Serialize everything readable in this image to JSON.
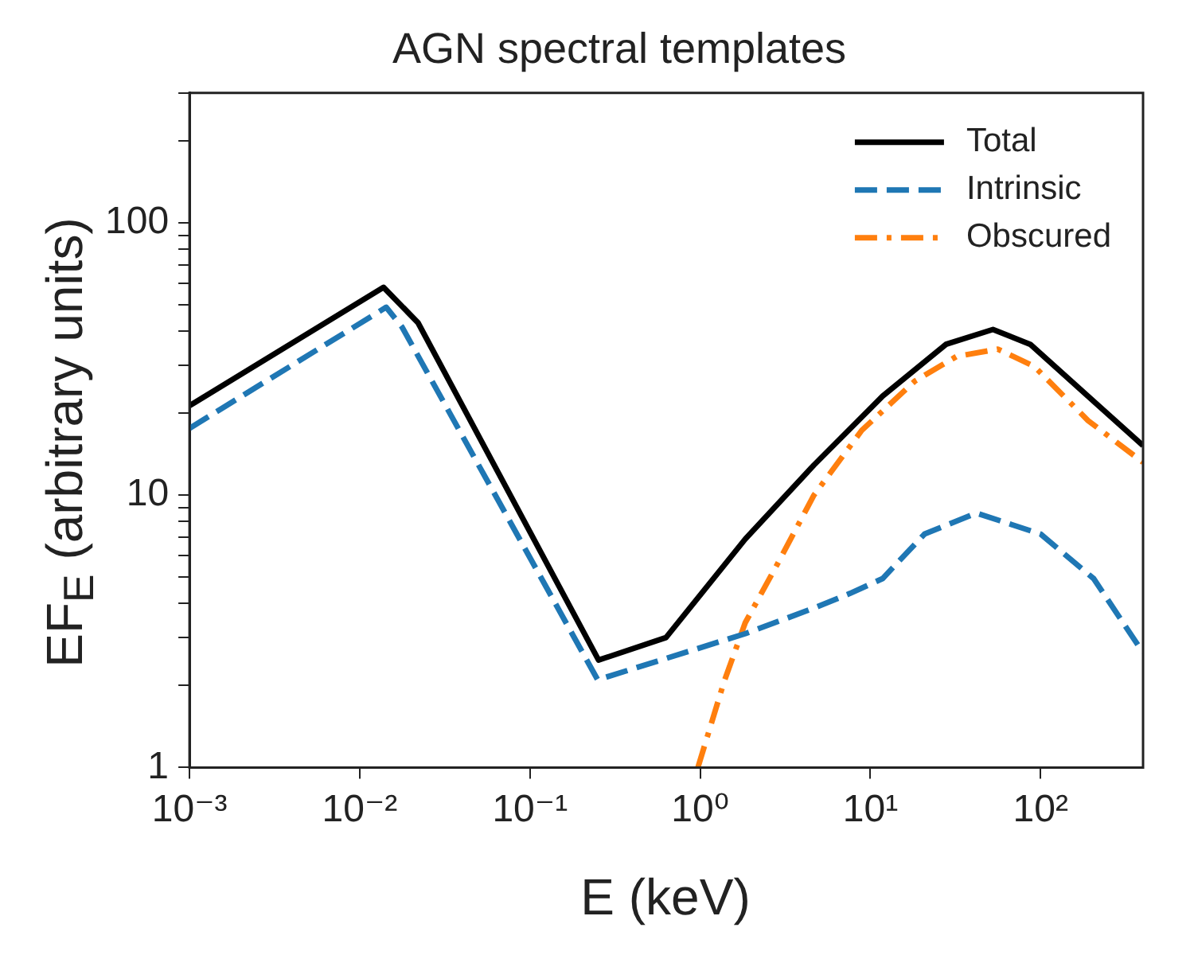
{
  "chart_data": {
    "type": "line",
    "title": "AGN spectral templates",
    "xlabel": "E (keV)",
    "ylabel": "EF$_{E}$ (arbitrary units)",
    "log": "xy",
    "legend": "top right",
    "grid": false,
    "marker": "none",
    "xlim": [
      0.001,
      400
    ],
    "ylim": [
      1,
      300
    ],
    "xticks": [
      {
        "value": 0.001,
        "label": "10⁻³"
      },
      {
        "value": 0.01,
        "label": "10⁻²"
      },
      {
        "value": 0.1,
        "label": "10⁻¹"
      },
      {
        "value": 1,
        "label": "10⁰"
      },
      {
        "value": 10,
        "label": "10¹"
      },
      {
        "value": 100,
        "label": "10²"
      }
    ],
    "yticks": [
      1,
      {
        "value": 2,
        "label": null
      },
      {
        "value": 3,
        "label": null
      },
      {
        "value": 4,
        "label": null
      },
      {
        "value": 5,
        "label": null
      },
      {
        "value": 6,
        "label": null
      },
      {
        "value": 7,
        "label": null
      },
      {
        "value": 8,
        "label": null
      },
      {
        "value": 9,
        "label": null
      },
      10,
      {
        "value": 20,
        "label": null
      },
      {
        "value": 30,
        "label": null
      },
      {
        "value": 40,
        "label": null
      },
      {
        "value": 50,
        "label": null
      },
      {
        "value": 60,
        "label": null
      },
      {
        "value": 70,
        "label": null
      },
      {
        "value": 80,
        "label": null
      },
      {
        "value": 90,
        "label": null
      },
      100,
      {
        "value": 200,
        "label": null
      },
      {
        "value": 300,
        "label": null
      }
    ],
    "series": [
      {
        "name": "Total",
        "color": "#000000",
        "line_style": "solid",
        "x": [
          0.001,
          0.0138,
          0.022,
          0.253,
          0.63,
          1.84,
          4.66,
          11.8,
          27.8,
          52.5,
          87,
          400
        ],
        "values": [
          21.3,
          58,
          43,
          2.48,
          3.0,
          6.9,
          12.9,
          23.1,
          35.8,
          40.6,
          35.8,
          15.2
        ]
      },
      {
        "name": "Intrinsic",
        "color": "#1f77b4",
        "line_style": "dashed",
        "x": [
          0.001,
          0.0143,
          0.0177,
          0.25,
          1.84,
          4.66,
          7.6,
          11.8,
          20.8,
          42,
          100,
          205,
          400
        ],
        "values": [
          17.6,
          49,
          41.5,
          2.1,
          3.1,
          3.85,
          4.36,
          4.94,
          7.2,
          8.6,
          7.2,
          4.94,
          2.64
        ]
      },
      {
        "name": "Obscured",
        "color": "#ff7f0e",
        "line_style": "dashdot",
        "x": [
          0.97,
          1.38,
          1.84,
          2.85,
          4.66,
          8.9,
          18.2,
          32,
          56,
          92,
          190,
          400
        ],
        "values": [
          1.0,
          2.06,
          3.4,
          5.6,
          10.0,
          17.3,
          26.2,
          32.3,
          34.4,
          29.7,
          18.8,
          13.2
        ]
      }
    ]
  }
}
